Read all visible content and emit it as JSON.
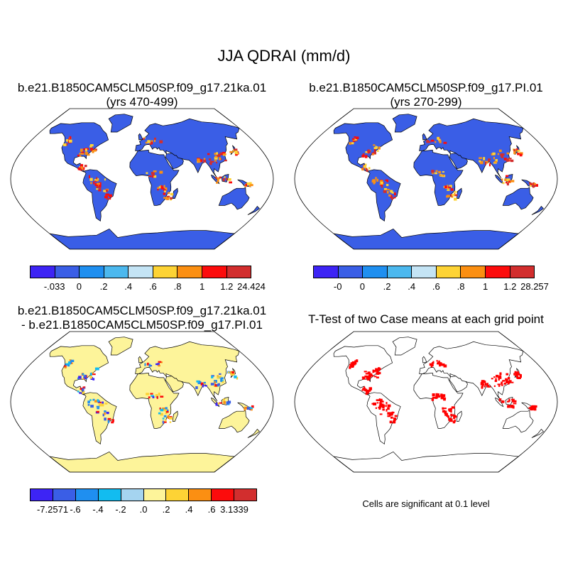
{
  "figure": {
    "title": "JJA QDRAI (mm/d)",
    "significance_note": "Cells are significant at 0.1 level"
  },
  "panels": [
    {
      "id": "case1",
      "title_line1": "b.e21.B1850CAM5CLM50SP.f09_g17.21ka.01",
      "title_line2": "(yrs 470-499)",
      "palette": [
        "#3d24f5",
        "#3a5ee6",
        "#1f8ff0",
        "#4cb8ee",
        "#c4e4f5",
        "#fdd335",
        "#fb8f12",
        "#fc0c0c",
        "#d22e2e"
      ],
      "tick_labels": [
        "-.033",
        "0",
        ".2",
        ".4",
        ".6",
        ".8",
        "1",
        "1.2",
        "24.424"
      ],
      "land_color": "#3a5ee6",
      "hotspots": "red"
    },
    {
      "id": "case2",
      "title_line1": "b.e21.B1850CAM5CLM50SP.f09_g17.PI.01",
      "title_line2": "(yrs 270-299)",
      "palette": [
        "#3d24f5",
        "#3a5ee6",
        "#1f8ff0",
        "#4cb8ee",
        "#c4e4f5",
        "#fdd335",
        "#fb8f12",
        "#fc0c0c",
        "#d22e2e"
      ],
      "tick_labels": [
        "-0",
        "0",
        ".2",
        ".4",
        ".6",
        ".8",
        "1",
        "1.2",
        "28.257"
      ],
      "land_color": "#3a5ee6",
      "hotspots": "red"
    },
    {
      "id": "difference",
      "title_line1": "b.e21.B1850CAM5CLM50SP.f09_g17.21ka.01",
      "title_line2": "- b.e21.B1850CAM5CLM50SP.f09_g17.PI.01",
      "palette": [
        "#3d24f5",
        "#3a5ee6",
        "#1f8ff0",
        "#12bcf0",
        "#a5d4f0",
        "#fdf49a",
        "#fdd335",
        "#fb8f12",
        "#fc0c0c",
        "#d22e2e"
      ],
      "tick_labels": [
        "-7.2571",
        "-.6",
        "-.4",
        "-.2",
        ".0",
        ".2",
        ".4",
        ".6",
        "3.1339"
      ],
      "land_color": "#fdf49a",
      "hotspots": "mixed"
    },
    {
      "id": "ttest",
      "title_line1": "T-Test of two Case means at each grid point",
      "title_line2": "",
      "land_color": "#ffffff",
      "hotspots": "significance",
      "significance_color": "#ff0000"
    }
  ]
}
